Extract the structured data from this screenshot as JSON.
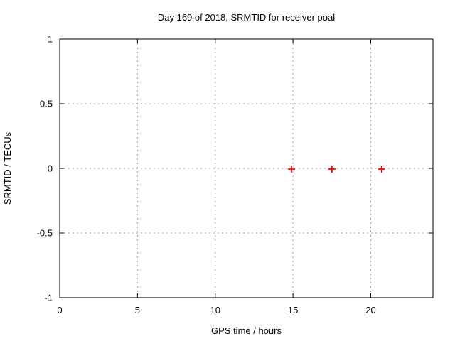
{
  "chart_data": {
    "type": "scatter",
    "title": "Day 169 of 2018, SRMTID for receiver poal",
    "xlabel": "GPS time / hours",
    "ylabel": "SRMTID / TECUs",
    "xlim": [
      0,
      24
    ],
    "ylim": [
      -1,
      1
    ],
    "x_ticks": [
      0,
      5,
      10,
      15,
      20
    ],
    "y_ticks": [
      -1,
      -0.5,
      0,
      0.5,
      1
    ],
    "grid": true,
    "legend": "none",
    "colors": {
      "marker": "#ff0000",
      "grid": "#a0a0a0",
      "border": "#000000",
      "text": "#000000",
      "background": "#ffffff"
    },
    "series": [
      {
        "name": "SRMTID",
        "marker": "plus",
        "color": "#ff0000",
        "points": [
          [
            14.9,
            0
          ],
          [
            17.5,
            0
          ],
          [
            20.7,
            0
          ]
        ]
      }
    ]
  }
}
